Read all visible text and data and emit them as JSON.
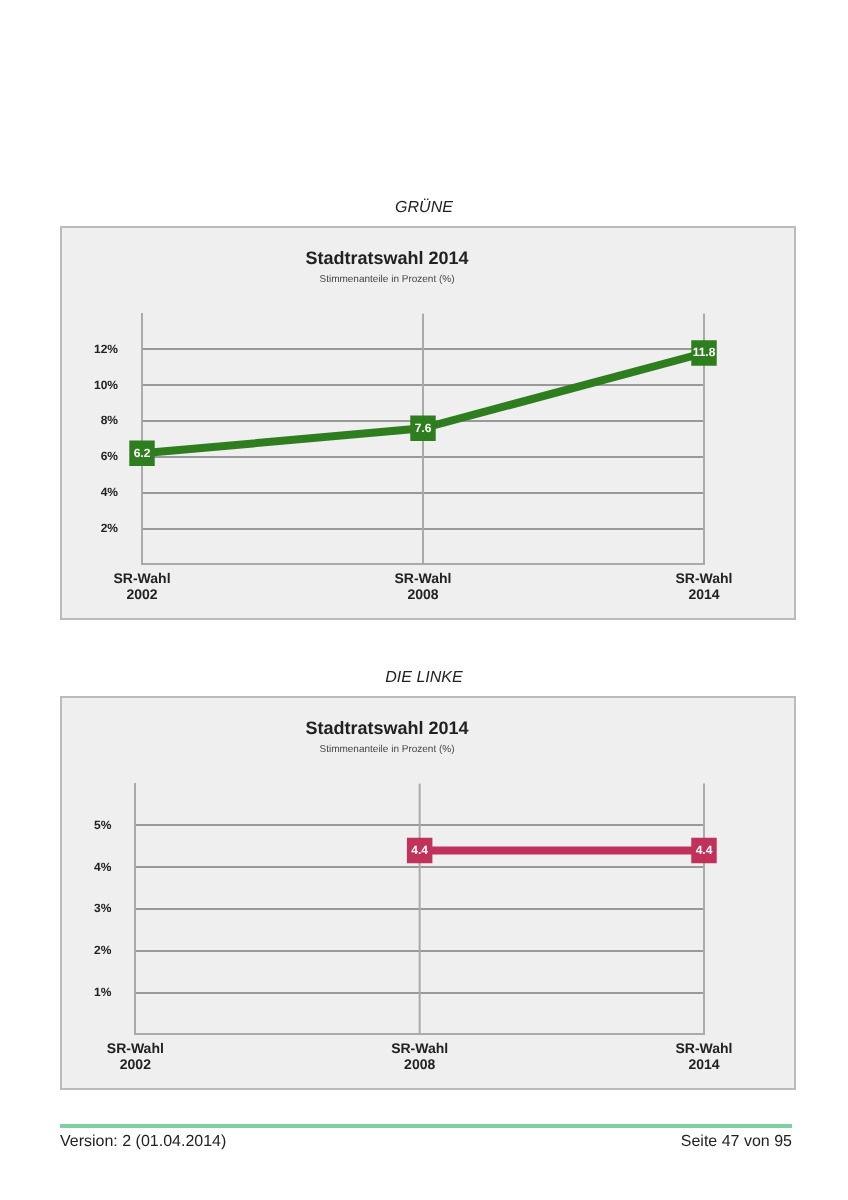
{
  "chart_data": [
    {
      "type": "line",
      "title": "Stadtratswahl 2014",
      "subtitle": "Stimmenanteile in Prozent (%)",
      "annotations": [
        "GRÜNE"
      ],
      "categories": [
        "SR-Wahl 2002",
        "SR-Wahl 2008",
        "SR-Wahl 2014"
      ],
      "series": [
        {
          "color": "#2e7d1e",
          "values": [
            6.2,
            7.6,
            11.8
          ]
        }
      ],
      "ylim": [
        0,
        14
      ],
      "yticks": [
        {
          "value": 2,
          "label": "2%"
        },
        {
          "value": 4,
          "label": "4%"
        },
        {
          "value": 6,
          "label": "6%"
        },
        {
          "value": 8,
          "label": "8%"
        },
        {
          "value": 10,
          "label": "10%"
        },
        {
          "value": 12,
          "label": "12%"
        }
      ],
      "grid": "y",
      "marker": "square",
      "ref_lines": [
        {
          "axis": "x",
          "value": "SR-Wahl 2008",
          "color": "#aaaaaa"
        }
      ],
      "data_labels": true
    },
    {
      "type": "line",
      "title": "Stadtratswahl 2014",
      "subtitle": "Stimmenanteile in Prozent (%)",
      "annotations": [
        "DIE LINKE",
        "Version: 2 (01.04.2014)",
        "Seite 47 von 95"
      ],
      "categories": [
        "SR-Wahl 2002",
        "SR-Wahl 2008",
        "SR-Wahl 2014"
      ],
      "series": [
        {
          "color": "#c0325a",
          "values": [
            null,
            4.4,
            4.4
          ]
        }
      ],
      "ylim": [
        0,
        6
      ],
      "yticks": [
        {
          "value": 1,
          "label": "1%"
        },
        {
          "value": 2,
          "label": "2%"
        },
        {
          "value": 3,
          "label": "3%"
        },
        {
          "value": 4,
          "label": "4%"
        },
        {
          "value": 5,
          "label": "5%"
        }
      ],
      "grid": "y",
      "marker": "square",
      "ref_lines": [
        {
          "axis": "x",
          "value": "SR-Wahl 2008",
          "color": "#aaaaaa"
        }
      ],
      "data_labels": true
    }
  ]
}
